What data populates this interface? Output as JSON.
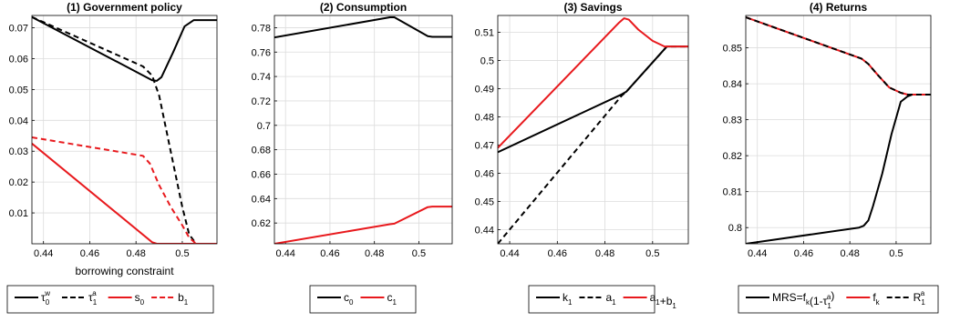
{
  "chart_data": [
    {
      "type": "line",
      "title": "(1) Government policy",
      "xlabel": "borrowing constraint",
      "ylabel": "",
      "xlim": [
        0.435,
        0.515
      ],
      "ylim": [
        0.0,
        0.074
      ],
      "xticks": [
        "0.44",
        "0.46",
        "0.48",
        "0.5"
      ],
      "yticks": [
        "0.01",
        "0.02",
        "0.03",
        "0.04",
        "0.05",
        "0.06",
        "0.07"
      ],
      "series": [
        {
          "name": "τ_0^w",
          "label_main": "τ",
          "label_sub": "0",
          "label_sup": "w",
          "color": "#000000",
          "dash": "solid",
          "x": [
            0.435,
            0.487,
            0.489,
            0.491,
            0.496,
            0.501,
            0.505,
            0.507,
            0.515
          ],
          "y": [
            0.0735,
            0.053,
            0.0528,
            0.054,
            0.062,
            0.0705,
            0.0725,
            0.0725,
            0.0725
          ]
        },
        {
          "name": "τ_1^a",
          "label_main": "τ",
          "label_sub": "1",
          "label_sup": "a",
          "color": "#000000",
          "dash": "dashed",
          "x": [
            0.435,
            0.483,
            0.487,
            0.49,
            0.495,
            0.5,
            0.503,
            0.506,
            0.515
          ],
          "y": [
            0.0735,
            0.0575,
            0.0545,
            0.048,
            0.03,
            0.012,
            0.003,
            0.0,
            0.0
          ]
        },
        {
          "name": "s_0",
          "label_main": "s",
          "label_sub": "0",
          "label_sup": "",
          "color": "#e8191d",
          "dash": "solid",
          "x": [
            0.435,
            0.487,
            0.489,
            0.515
          ],
          "y": [
            0.0325,
            0.0005,
            0.0,
            0.0
          ]
        },
        {
          "name": "b_1",
          "label_main": "b",
          "label_sub": "1",
          "label_sup": "",
          "color": "#e8191d",
          "dash": "dashed",
          "x": [
            0.435,
            0.483,
            0.486,
            0.49,
            0.495,
            0.5,
            0.503,
            0.506,
            0.515
          ],
          "y": [
            0.0345,
            0.0285,
            0.026,
            0.019,
            0.012,
            0.006,
            0.002,
            0.0,
            0.0
          ]
        }
      ]
    },
    {
      "type": "line",
      "title": "(2) Consumption",
      "xlabel": "",
      "ylabel": "",
      "xlim": [
        0.435,
        0.515
      ],
      "ylim": [
        0.603,
        0.79
      ],
      "xticks": [
        "0.44",
        "0.46",
        "0.48",
        "0.5"
      ],
      "yticks": [
        "0.62",
        "0.64",
        "0.66",
        "0.68",
        "0.7",
        "0.72",
        "0.74",
        "0.76",
        "0.78"
      ],
      "series": [
        {
          "name": "c_0",
          "label_main": "c",
          "label_sub": "0",
          "label_sup": "",
          "color": "#000000",
          "dash": "solid",
          "x": [
            0.435,
            0.487,
            0.489,
            0.504,
            0.506,
            0.515
          ],
          "y": [
            0.772,
            0.7885,
            0.7885,
            0.773,
            0.7725,
            0.7725
          ]
        },
        {
          "name": "c_1",
          "label_main": "c",
          "label_sub": "1",
          "label_sup": "",
          "color": "#e8191d",
          "dash": "solid",
          "x": [
            0.435,
            0.487,
            0.489,
            0.504,
            0.506,
            0.515
          ],
          "y": [
            0.603,
            0.619,
            0.6195,
            0.633,
            0.6335,
            0.6335
          ]
        }
      ]
    },
    {
      "type": "line",
      "title": "(3) Savings",
      "xlabel": "",
      "ylabel": "",
      "xlim": [
        0.435,
        0.515
      ],
      "ylim": [
        0.435,
        0.516
      ],
      "xticks": [
        "0.44",
        "0.46",
        "0.48",
        "0.5"
      ],
      "yticks": [
        "0.44",
        "0.45",
        "0.46",
        "0.47",
        "0.48",
        "0.49",
        "0.5",
        "0.51"
      ],
      "series": [
        {
          "name": "k_1",
          "label_main": "k",
          "label_sub": "1",
          "label_sup": "",
          "color": "#000000",
          "dash": "solid",
          "x": [
            0.435,
            0.487,
            0.489,
            0.506,
            0.515
          ],
          "y": [
            0.4675,
            0.488,
            0.489,
            0.505,
            0.505
          ]
        },
        {
          "name": "a_1",
          "label_main": "a",
          "label_sub": "1",
          "label_sup": "",
          "color": "#000000",
          "dash": "dashed",
          "x": [
            0.435,
            0.487,
            0.489,
            0.506,
            0.515
          ],
          "y": [
            0.435,
            0.4875,
            0.489,
            0.505,
            0.505
          ]
        },
        {
          "name": "a_1+b_1",
          "label_main": "a",
          "label_sub": "1",
          "label_mid": "+b",
          "label_sub2": "1",
          "label_sup": "",
          "color": "#e8191d",
          "dash": "solid",
          "x": [
            0.435,
            0.486,
            0.488,
            0.49,
            0.494,
            0.5,
            0.505,
            0.515
          ],
          "y": [
            0.469,
            0.5135,
            0.515,
            0.5145,
            0.511,
            0.507,
            0.505,
            0.505
          ]
        }
      ]
    },
    {
      "type": "line",
      "title": "(4) Returns",
      "xlabel": "",
      "ylabel": "",
      "xlim": [
        0.435,
        0.515
      ],
      "ylim": [
        0.7955,
        0.859
      ],
      "xticks": [
        "0.44",
        "0.46",
        "0.48",
        "0.5"
      ],
      "yticks": [
        "0.8",
        "0.81",
        "0.82",
        "0.83",
        "0.84",
        "0.85"
      ],
      "series": [
        {
          "name": "MRS=f_k(1-τ_1^a)",
          "legend_parts": [
            "MRS=f",
            "k",
            "(1-τ",
            "1",
            "a",
            ")"
          ],
          "color": "#000000",
          "dash": "solid",
          "x": [
            0.435,
            0.484,
            0.486,
            0.488,
            0.49,
            0.494,
            0.498,
            0.502,
            0.505,
            0.507,
            0.515
          ],
          "y": [
            0.7955,
            0.8,
            0.8005,
            0.802,
            0.806,
            0.815,
            0.826,
            0.835,
            0.8365,
            0.837,
            0.837
          ]
        },
        {
          "name": "f_k",
          "label_main": "f",
          "label_sub": "k",
          "label_sup": "",
          "color": "#e8191d",
          "dash": "solid",
          "x": [
            0.435,
            0.485,
            0.488,
            0.492,
            0.497,
            0.502,
            0.505,
            0.515
          ],
          "y": [
            0.8585,
            0.847,
            0.8455,
            0.8425,
            0.839,
            0.8375,
            0.837,
            0.837
          ]
        },
        {
          "name": "R_1^a",
          "label_main": "R",
          "label_sub": "1",
          "label_sup": "a",
          "color": "#000000",
          "dash": "dashed",
          "x": [
            0.435,
            0.485,
            0.488,
            0.492,
            0.497,
            0.502,
            0.505,
            0.515
          ],
          "y": [
            0.8585,
            0.847,
            0.8455,
            0.8425,
            0.839,
            0.8375,
            0.837,
            0.837
          ]
        }
      ]
    }
  ]
}
